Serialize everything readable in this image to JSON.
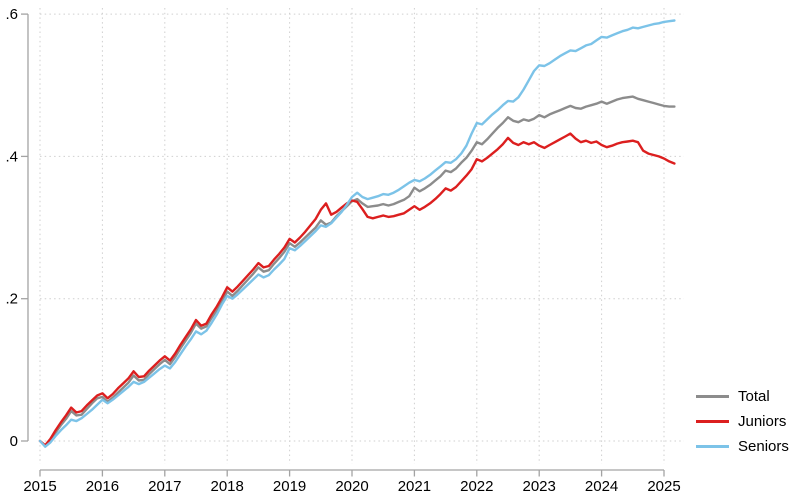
{
  "chart_data": {
    "type": "line",
    "title": "",
    "xlabel": "",
    "ylabel": "",
    "grid": "dotted",
    "legend_position": "bottom-right",
    "x_axis": {
      "tick_labels": [
        "2015",
        "2016",
        "2017",
        "2018",
        "2019",
        "2020",
        "2021",
        "2022",
        "2023",
        "2024",
        "2025"
      ],
      "tick_values": [
        2015,
        2016,
        2017,
        2018,
        2019,
        2020,
        2021,
        2022,
        2023,
        2024,
        2025
      ],
      "range": [
        2015,
        2025.25
      ]
    },
    "y_axis": {
      "tick_labels": [
        "0",
        ".2",
        ".4",
        ".6"
      ],
      "tick_values": [
        0,
        0.2,
        0.4,
        0.6
      ],
      "range": [
        -0.02,
        0.6
      ]
    },
    "frequency": "monthly",
    "x_start_year": 2015,
    "series": [
      {
        "name": "Total",
        "color": "#8c8c8c",
        "values": [
          0.0,
          -0.007,
          0.001,
          0.012,
          0.022,
          0.031,
          0.042,
          0.036,
          0.037,
          0.045,
          0.053,
          0.06,
          0.062,
          0.055,
          0.061,
          0.068,
          0.075,
          0.082,
          0.092,
          0.085,
          0.086,
          0.094,
          0.101,
          0.108,
          0.114,
          0.108,
          0.118,
          0.13,
          0.141,
          0.152,
          0.165,
          0.158,
          0.161,
          0.173,
          0.184,
          0.196,
          0.21,
          0.204,
          0.211,
          0.219,
          0.227,
          0.235,
          0.244,
          0.238,
          0.24,
          0.249,
          0.257,
          0.266,
          0.278,
          0.273,
          0.279,
          0.286,
          0.293,
          0.3,
          0.31,
          0.304,
          0.307,
          0.316,
          0.323,
          0.33,
          0.337,
          0.34,
          0.334,
          0.329,
          0.33,
          0.331,
          0.333,
          0.331,
          0.333,
          0.336,
          0.339,
          0.344,
          0.356,
          0.351,
          0.355,
          0.36,
          0.366,
          0.372,
          0.38,
          0.378,
          0.383,
          0.391,
          0.398,
          0.408,
          0.42,
          0.417,
          0.424,
          0.432,
          0.44,
          0.447,
          0.455,
          0.45,
          0.448,
          0.452,
          0.45,
          0.453,
          0.458,
          0.455,
          0.459,
          0.462,
          0.465,
          0.468,
          0.471,
          0.468,
          0.467,
          0.47,
          0.472,
          0.474,
          0.477,
          0.474,
          0.477,
          0.48,
          0.482,
          0.483,
          0.484,
          0.481,
          0.479,
          0.477,
          0.475,
          0.473,
          0.471,
          0.47,
          0.47
        ]
      },
      {
        "name": "Juniors",
        "color": "#dc1f1f",
        "values": [
          0.0,
          -0.006,
          0.003,
          0.015,
          0.026,
          0.036,
          0.047,
          0.04,
          0.042,
          0.05,
          0.057,
          0.064,
          0.067,
          0.06,
          0.066,
          0.074,
          0.081,
          0.088,
          0.098,
          0.09,
          0.091,
          0.099,
          0.106,
          0.113,
          0.119,
          0.113,
          0.123,
          0.135,
          0.146,
          0.157,
          0.17,
          0.162,
          0.165,
          0.178,
          0.189,
          0.202,
          0.216,
          0.21,
          0.217,
          0.225,
          0.233,
          0.241,
          0.25,
          0.244,
          0.246,
          0.255,
          0.263,
          0.272,
          0.284,
          0.279,
          0.286,
          0.294,
          0.303,
          0.312,
          0.325,
          0.334,
          0.318,
          0.322,
          0.328,
          0.334,
          0.338,
          0.336,
          0.326,
          0.315,
          0.313,
          0.315,
          0.317,
          0.315,
          0.316,
          0.318,
          0.32,
          0.325,
          0.33,
          0.325,
          0.329,
          0.334,
          0.34,
          0.347,
          0.355,
          0.352,
          0.357,
          0.365,
          0.373,
          0.382,
          0.396,
          0.393,
          0.398,
          0.404,
          0.41,
          0.417,
          0.426,
          0.419,
          0.416,
          0.42,
          0.417,
          0.42,
          0.415,
          0.412,
          0.416,
          0.42,
          0.424,
          0.428,
          0.432,
          0.425,
          0.42,
          0.422,
          0.419,
          0.421,
          0.416,
          0.413,
          0.415,
          0.418,
          0.42,
          0.421,
          0.422,
          0.42,
          0.408,
          0.404,
          0.402,
          0.4,
          0.397,
          0.393,
          0.39
        ]
      },
      {
        "name": "Seniors",
        "color": "#7cc3e8",
        "values": [
          0.0,
          -0.008,
          -0.002,
          0.007,
          0.015,
          0.022,
          0.03,
          0.028,
          0.032,
          0.038,
          0.044,
          0.051,
          0.058,
          0.053,
          0.058,
          0.064,
          0.07,
          0.076,
          0.083,
          0.08,
          0.083,
          0.089,
          0.095,
          0.101,
          0.106,
          0.102,
          0.111,
          0.122,
          0.133,
          0.143,
          0.154,
          0.15,
          0.155,
          0.166,
          0.178,
          0.192,
          0.204,
          0.2,
          0.206,
          0.213,
          0.22,
          0.227,
          0.234,
          0.23,
          0.233,
          0.241,
          0.248,
          0.256,
          0.271,
          0.268,
          0.274,
          0.281,
          0.288,
          0.295,
          0.303,
          0.301,
          0.306,
          0.314,
          0.322,
          0.332,
          0.343,
          0.349,
          0.343,
          0.34,
          0.342,
          0.344,
          0.347,
          0.346,
          0.349,
          0.353,
          0.358,
          0.363,
          0.367,
          0.365,
          0.369,
          0.374,
          0.38,
          0.386,
          0.392,
          0.391,
          0.396,
          0.404,
          0.415,
          0.432,
          0.447,
          0.445,
          0.452,
          0.459,
          0.465,
          0.472,
          0.478,
          0.477,
          0.483,
          0.494,
          0.507,
          0.52,
          0.528,
          0.527,
          0.531,
          0.536,
          0.541,
          0.545,
          0.549,
          0.548,
          0.552,
          0.556,
          0.558,
          0.563,
          0.568,
          0.567,
          0.57,
          0.573,
          0.576,
          0.578,
          0.581,
          0.58,
          0.582,
          0.584,
          0.586,
          0.587,
          0.589,
          0.59,
          0.591
        ]
      }
    ]
  },
  "legend": {
    "items": [
      {
        "label": "Total"
      },
      {
        "label": "Juniors"
      },
      {
        "label": "Seniors"
      }
    ]
  },
  "style": {
    "axis_color": "#a3a3a3",
    "grid_color": "#cfcfcf",
    "tick_label_color": "#000000",
    "background": "#ffffff"
  }
}
